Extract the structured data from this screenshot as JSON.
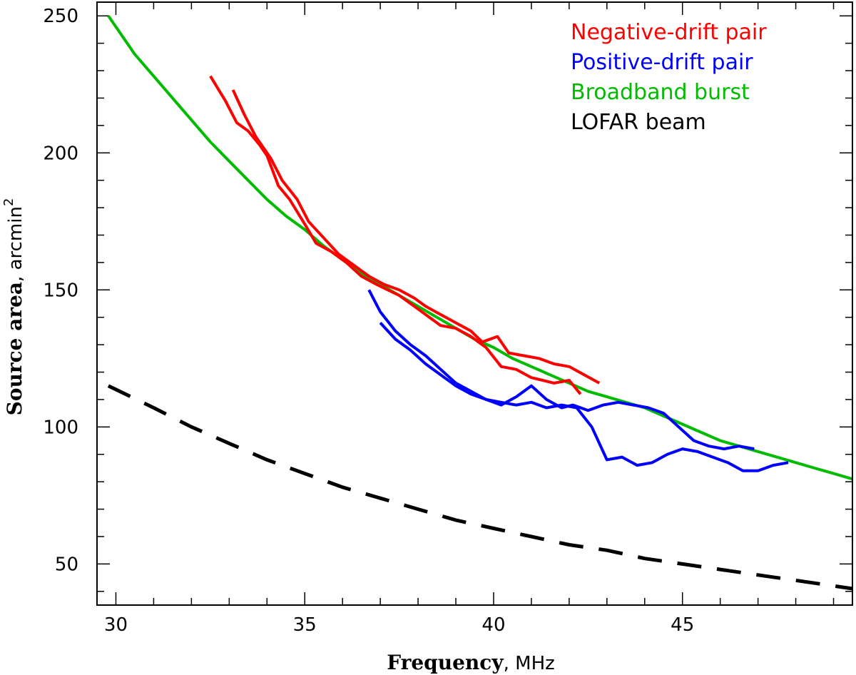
{
  "chart_data": {
    "type": "line",
    "xlabel": "Frequency",
    "xlabel_unit": "MHz",
    "ylabel": "Source area",
    "ylabel_unit": "arcmin",
    "ylabel_sup": "2",
    "xlim": [
      29.5,
      49.5
    ],
    "ylim": [
      35,
      255
    ],
    "x_major_ticks": [
      30,
      35,
      40,
      45
    ],
    "x_tick_labels": [
      "30",
      "35",
      "40",
      "45"
    ],
    "x_minor_step": 1,
    "y_major_ticks": [
      50,
      100,
      150,
      200,
      250
    ],
    "y_tick_labels": [
      "50",
      "100",
      "150",
      "200",
      "250"
    ],
    "y_minor_step": 10,
    "legend_position": "top-right",
    "series": [
      {
        "name": "Negative-drift pair",
        "color": "#ff0000",
        "style": "solid",
        "x": [
          32.5,
          32.9,
          33.2,
          33.5,
          33.8,
          34.0,
          34.3,
          34.6,
          35.0,
          35.3,
          35.7,
          36.1,
          36.5,
          36.9,
          37.2,
          37.5,
          37.9,
          38.3,
          38.6,
          39.0,
          39.4,
          39.8,
          40.2,
          40.6,
          41.0,
          41.3,
          41.6,
          42.0,
          42.3
        ],
        "y": [
          228,
          219,
          211,
          208,
          203,
          199,
          188,
          183,
          174,
          167,
          164,
          160,
          155,
          152,
          150,
          148,
          144,
          140,
          137,
          136,
          133,
          129,
          122,
          121,
          118,
          117,
          116,
          117,
          112
        ]
      },
      {
        "name": "Negative-drift pair",
        "color": "#ff0000",
        "style": "solid",
        "x": [
          33.1,
          33.4,
          33.7,
          34.1,
          34.4,
          34.8,
          35.1,
          35.5,
          35.9,
          36.3,
          36.7,
          37.1,
          37.5,
          37.9,
          38.2,
          38.6,
          39.0,
          39.4,
          39.7,
          40.1,
          40.4,
          40.8,
          41.2,
          41.6,
          42.0,
          42.4,
          42.8
        ],
        "y": [
          223,
          214,
          206,
          198,
          190,
          183,
          175,
          169,
          163,
          159,
          155,
          152,
          150,
          147,
          144,
          141,
          138,
          135,
          131,
          133,
          127,
          126,
          125,
          123,
          122,
          119,
          116
        ]
      },
      {
        "name": "Positive-drift pair",
        "color": "#0000ff",
        "style": "solid",
        "x": [
          36.7,
          37.0,
          37.4,
          37.8,
          38.2,
          38.6,
          39.0,
          39.4,
          39.8,
          40.2,
          40.6,
          41.0,
          41.4,
          41.8,
          42.1,
          42.5,
          42.9,
          43.3,
          43.7,
          44.1,
          44.5,
          44.9,
          45.3,
          45.7,
          46.1,
          46.5,
          46.9
        ],
        "y": [
          150,
          142,
          135,
          130,
          126,
          121,
          116,
          113,
          110,
          108,
          111,
          115,
          110,
          107,
          108,
          106,
          108,
          109,
          108,
          107,
          105,
          100,
          95,
          93,
          92,
          93,
          92
        ]
      },
      {
        "name": "Positive-drift pair",
        "color": "#0000ff",
        "style": "solid",
        "x": [
          37.0,
          37.4,
          37.8,
          38.2,
          38.6,
          39.0,
          39.4,
          39.8,
          40.2,
          40.6,
          41.0,
          41.4,
          41.8,
          42.2,
          42.6,
          43.0,
          43.4,
          43.8,
          44.2,
          44.6,
          45.0,
          45.4,
          45.8,
          46.2,
          46.6,
          47.0,
          47.4,
          47.8
        ],
        "y": [
          138,
          132,
          128,
          123,
          119,
          115,
          112,
          110,
          109,
          108,
          109,
          107,
          108,
          107,
          100,
          88,
          89,
          86,
          87,
          90,
          92,
          91,
          89,
          87,
          84,
          84,
          86,
          87
        ]
      },
      {
        "name": "Broadband burst",
        "color": "#00bb00",
        "style": "solid",
        "x": [
          29.8,
          30.5,
          31.0,
          31.5,
          32.0,
          32.5,
          33.0,
          33.5,
          34.0,
          34.5,
          35.0,
          35.5,
          36.0,
          36.5,
          37.0,
          37.5,
          38.0,
          38.5,
          39.0,
          39.5,
          40.0,
          40.5,
          41.0,
          41.5,
          42.0,
          42.5,
          43.0,
          43.5,
          44.0,
          44.5,
          45.0,
          45.5,
          46.0,
          46.5,
          47.0,
          47.5,
          48.0,
          48.5,
          49.0,
          49.5
        ],
        "y": [
          250,
          236,
          228,
          220,
          212,
          204,
          197,
          190,
          183,
          177,
          172,
          166,
          161,
          156,
          152,
          148,
          144,
          140,
          136,
          132,
          129,
          125,
          122,
          119,
          116,
          113,
          111,
          109,
          107,
          104,
          101,
          98,
          95,
          93,
          91,
          89,
          87,
          85,
          83,
          81
        ]
      },
      {
        "name": "LOFAR beam",
        "color": "#000000",
        "style": "dashed",
        "x": [
          29.8,
          31.0,
          32.0,
          33.0,
          34.0,
          35.0,
          36.0,
          37.0,
          38.0,
          39.0,
          40.0,
          41.0,
          42.0,
          43.0,
          44.0,
          45.0,
          46.0,
          47.0,
          48.0,
          49.0,
          49.5
        ],
        "y": [
          115,
          107,
          100,
          94,
          88,
          83,
          78,
          74,
          70,
          66,
          63,
          60,
          57,
          55,
          52,
          50,
          48,
          46,
          44,
          42,
          41
        ]
      }
    ],
    "legend": [
      {
        "label": "Negative-drift pair",
        "color": "#ff0000"
      },
      {
        "label": "Positive-drift pair",
        "color": "#0000ff"
      },
      {
        "label": "Broadband burst",
        "color": "#00bb00"
      },
      {
        "label": "LOFAR beam",
        "color": "#000000"
      }
    ]
  }
}
